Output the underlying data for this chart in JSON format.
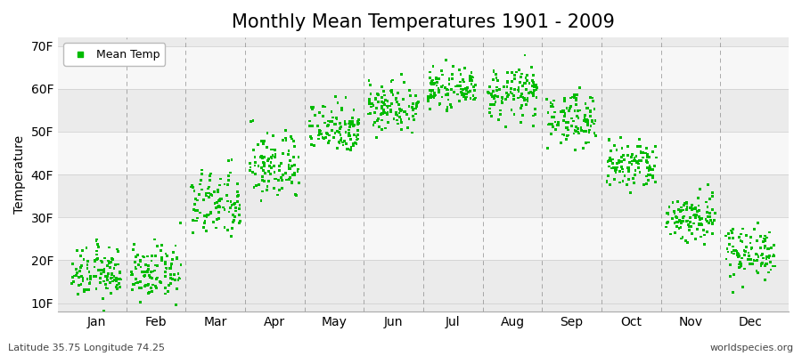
{
  "title": "Monthly Mean Temperatures 1901 - 2009",
  "ylabel": "Temperature",
  "xlabel_bottom_left": "Latitude 35.75 Longitude 74.25",
  "xlabel_bottom_right": "worldspecies.org",
  "yticks": [
    10,
    20,
    30,
    40,
    50,
    60,
    70
  ],
  "ytick_labels": [
    "10F",
    "20F",
    "30F",
    "40F",
    "50F",
    "60F",
    "70F"
  ],
  "ylim": [
    8,
    72
  ],
  "months": [
    "Jan",
    "Feb",
    "Mar",
    "Apr",
    "May",
    "Jun",
    "Jul",
    "Aug",
    "Sep",
    "Oct",
    "Nov",
    "Dec"
  ],
  "month_means": [
    17,
    17,
    33,
    42,
    51,
    56,
    60,
    59,
    53,
    42,
    30,
    22
  ],
  "month_stds": [
    3,
    3,
    4,
    4,
    3,
    3,
    2,
    3,
    3,
    3,
    3,
    3
  ],
  "n_years": 109,
  "marker_color": "#00bb00",
  "marker": "s",
  "marker_size": 2,
  "background_color": "#f0f0f0",
  "band_colors": [
    "#ebebeb",
    "#f7f7f7"
  ],
  "grid_color": "#777777",
  "title_fontsize": 15,
  "axis_fontsize": 10,
  "tick_fontsize": 10,
  "legend_fontsize": 9
}
